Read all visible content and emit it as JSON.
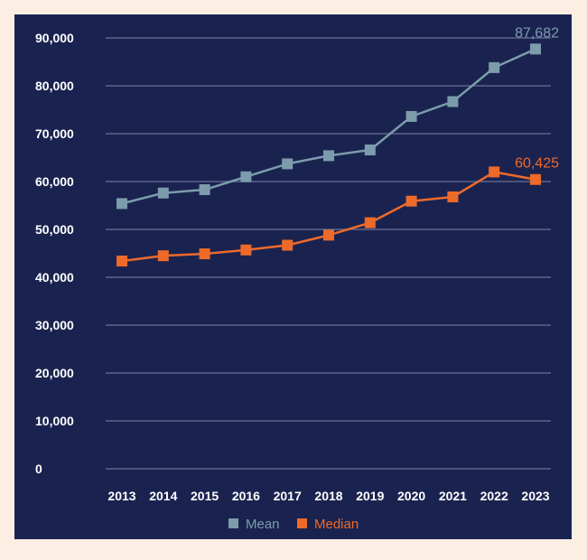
{
  "chart_data": {
    "type": "line",
    "x": [
      "2013",
      "2014",
      "2015",
      "2016",
      "2017",
      "2018",
      "2019",
      "2020",
      "2021",
      "2022",
      "2023"
    ],
    "series": [
      {
        "name": "Mean",
        "color": "#7c9cac",
        "values": [
          55400,
          57600,
          58300,
          61000,
          63700,
          65400,
          66600,
          73600,
          76700,
          83800,
          87682
        ],
        "end_label": "87,682"
      },
      {
        "name": "Median",
        "color": "#ee6a2a",
        "values": [
          43400,
          44500,
          44900,
          45700,
          46700,
          48800,
          51400,
          55900,
          56800,
          62000,
          60425
        ],
        "end_label": "60,425"
      }
    ],
    "ylim": [
      0,
      90000
    ],
    "yticks": [
      "0",
      "10,000",
      "20,000",
      "30,000",
      "40,000",
      "50,000",
      "60,000",
      "70,000",
      "80,000",
      "90,000"
    ],
    "grid": true,
    "legend_placement": "bottom-center"
  },
  "colors": {
    "background": "#fdeee3",
    "panel": "#1a2350",
    "grid": "#6a7296",
    "text": "#ffffff"
  }
}
